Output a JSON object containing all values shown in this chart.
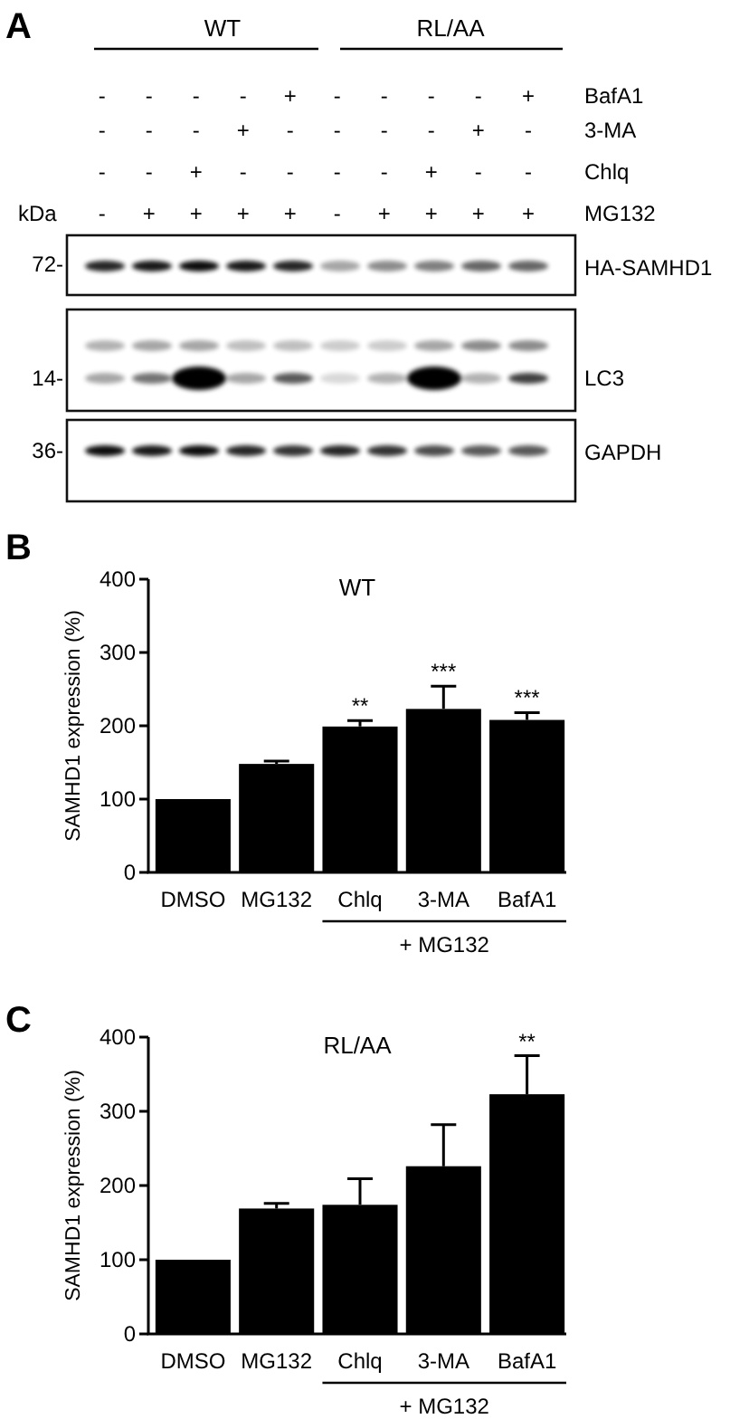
{
  "chart_data": [
    {
      "type": "other",
      "annotations": [
        "A",
        "WT",
        "RL/AA",
        "- - - - + - - - - +",
        "BafA1",
        "- - - + - - - - + -",
        "3-MA",
        "- - + - - - - + - -",
        "Chlq",
        "kDa",
        "- + + + + - + + + +",
        "MG132",
        "72-",
        "HA-SAMHD1",
        "14-",
        "LC3",
        "36-",
        "GAPDH"
      ]
    },
    {
      "type": "bar",
      "title": "WT",
      "ylabel": "SAMHD1 expression (%)",
      "categories": [
        "DMSO",
        "MG132",
        "Chlq",
        "3-MA",
        "BafA1"
      ],
      "values": [
        100,
        148,
        199,
        223,
        208
      ],
      "errors": [
        null,
        4,
        8,
        31,
        10
      ],
      "color": "#000000",
      "ylim": [
        0,
        400
      ],
      "yticks": [
        0,
        100,
        200,
        300,
        400
      ],
      "annotations": [
        "B",
        "**",
        "***",
        "***",
        "+ MG132"
      ]
    },
    {
      "type": "bar",
      "title": "RL/AA",
      "ylabel": "SAMHD1 expression (%)",
      "categories": [
        "DMSO",
        "MG132",
        "Chlq",
        "3-MA",
        "BafA1"
      ],
      "values": [
        100,
        169,
        174,
        226,
        323
      ],
      "errors": [
        null,
        7,
        35,
        56,
        52
      ],
      "color": "#000000",
      "ylim": [
        0,
        400
      ],
      "yticks": [
        0,
        100,
        200,
        300,
        400
      ],
      "annotations": [
        "C",
        "**",
        "+ MG132"
      ]
    }
  ]
}
